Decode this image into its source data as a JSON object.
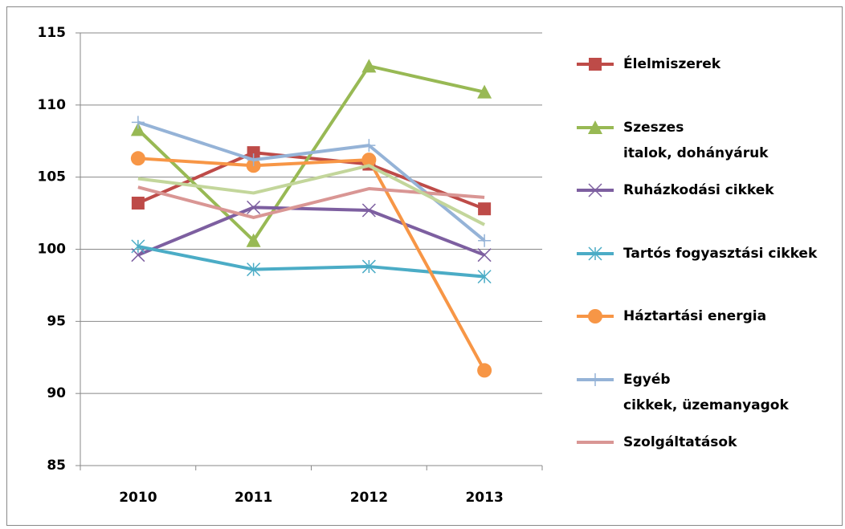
{
  "chart_data": {
    "type": "line",
    "categories": [
      "2010",
      "2011",
      "2012",
      "2013"
    ],
    "series": [
      {
        "name": "Élelmiszerek",
        "color": "#be4b48",
        "marker": "square",
        "values": [
          103.2,
          106.7,
          105.9,
          102.8
        ]
      },
      {
        "name": "Szeszes\nitalok, dohányáruk",
        "color": "#98b954",
        "marker": "triangle",
        "values": [
          108.3,
          100.6,
          112.7,
          110.9
        ]
      },
      {
        "name": "Ruházkodási cikkek",
        "color": "#7d5fa0",
        "marker": "x",
        "values": [
          99.6,
          102.9,
          102.7,
          99.6
        ]
      },
      {
        "name": "Tartós fogyasztási cikkek",
        "color": "#4bacc6",
        "marker": "star",
        "values": [
          100.2,
          98.6,
          98.8,
          98.1
        ]
      },
      {
        "name": "Háztartási energia",
        "color": "#f79646",
        "marker": "circle",
        "values": [
          106.3,
          105.8,
          106.2,
          91.6
        ]
      },
      {
        "name": "Egyéb\ncikkek, üzemanyagok",
        "color": "#95b3d7",
        "marker": "plus",
        "values": [
          108.8,
          106.2,
          107.2,
          100.6
        ]
      },
      {
        "name": "Szolgáltatások",
        "color": "#d99694",
        "marker": "none",
        "values": [
          104.3,
          102.2,
          104.2,
          103.6
        ]
      },
      {
        "color": "#c3d69b",
        "marker": "none",
        "values": [
          104.9,
          103.9,
          105.8,
          101.7
        ]
      }
    ],
    "ylim": [
      85,
      115
    ],
    "yticks": [
      85,
      90,
      95,
      100,
      105,
      110,
      115
    ],
    "grid": true,
    "legend": "right"
  }
}
